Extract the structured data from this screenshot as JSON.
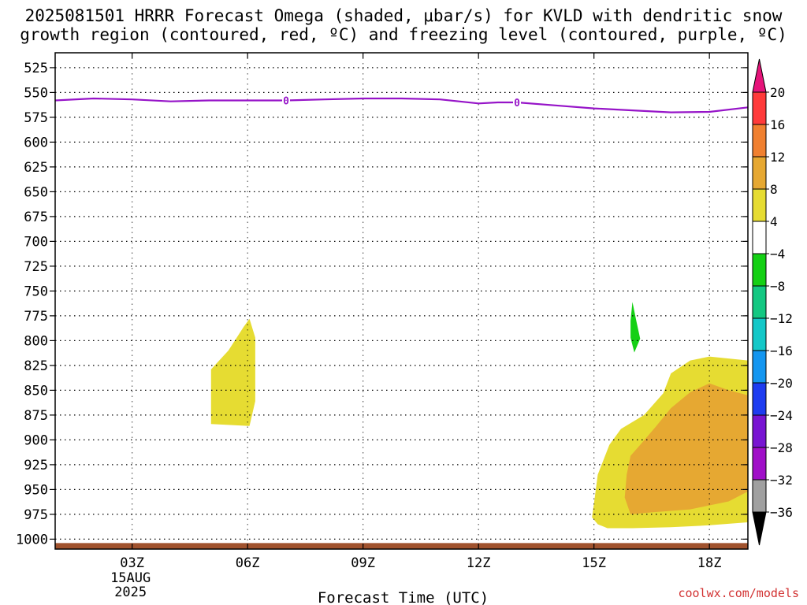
{
  "chart_data": {
    "type": "heatmap",
    "title_line1": "2025081501 HRRR Forecast Omega (shaded, μbar/s) for KVLD with dendritic snow",
    "title_line2": "growth region (contoured, red, ºC) and freezing level (contoured, purple, ºC)",
    "xlabel": "Forecast Time (UTC)",
    "ylabel": "",
    "x_range_hours": [
      1,
      19
    ],
    "y_range_hPa": [
      510,
      1010
    ],
    "y_ticks": [
      "525",
      "550",
      "575",
      "600",
      "625",
      "650",
      "675",
      "700",
      "725",
      "750",
      "775",
      "800",
      "825",
      "850",
      "875",
      "900",
      "925",
      "950",
      "975",
      "1000"
    ],
    "x_ticks": [
      {
        "hour": 3,
        "label": "03Z"
      },
      {
        "hour": 6,
        "label": "06Z"
      },
      {
        "hour": 9,
        "label": "09Z"
      },
      {
        "hour": 12,
        "label": "12Z"
      },
      {
        "hour": 15,
        "label": "15Z"
      },
      {
        "hour": 18,
        "label": "18Z"
      }
    ],
    "date_label_line1": "15AUG",
    "date_label_line2": "2025",
    "grid": true,
    "colorbar": {
      "labels": [
        "20",
        "16",
        "12",
        "8",
        "4",
        "-4",
        "-8",
        "-12",
        "-16",
        "-20",
        "-24",
        "-28",
        "-32",
        "-36"
      ],
      "colors": [
        "#ff3a3a",
        "#f08030",
        "#e6a832",
        "#e6dc32",
        "#ffffff",
        "#14d014",
        "#14c882",
        "#14c8c8",
        "#1496f0",
        "#1e3cf0",
        "#7814d2",
        "#a00fc8",
        "#a0a0a0"
      ],
      "top_arrow_color": "#e6147a",
      "bottom_arrow_color": "#000000"
    },
    "freezing_level": {
      "color": "#9614c8",
      "points": [
        [
          1,
          558
        ],
        [
          2,
          556
        ],
        [
          3,
          557
        ],
        [
          4,
          559
        ],
        [
          5,
          558
        ],
        [
          6,
          558
        ],
        [
          7,
          558
        ],
        [
          8,
          557
        ],
        [
          9,
          556
        ],
        [
          10,
          556
        ],
        [
          11,
          557
        ],
        [
          12,
          561
        ],
        [
          12.5,
          560
        ],
        [
          13,
          560
        ],
        [
          14,
          563
        ],
        [
          15,
          566
        ],
        [
          16,
          568
        ],
        [
          17,
          570
        ],
        [
          18,
          569.5
        ],
        [
          19,
          565
        ]
      ],
      "labels": [
        {
          "hour": 7,
          "hPa": 558,
          "text": "0"
        },
        {
          "hour": 13,
          "hPa": 560,
          "text": "0"
        }
      ]
    },
    "omega_regions": [
      {
        "value_range": "4 to 8",
        "color": "#e6dc32",
        "points": [
          [
            5.05,
            829
          ],
          [
            5.5,
            810
          ],
          [
            5.9,
            786
          ],
          [
            6.05,
            778
          ],
          [
            6.2,
            797
          ],
          [
            6.2,
            848
          ],
          [
            6.2,
            861
          ],
          [
            6.05,
            886
          ],
          [
            5.05,
            884
          ]
        ]
      },
      {
        "value_range": "-8 to -4",
        "color": "#14d014",
        "points": [
          [
            16.0,
            761
          ],
          [
            16.1,
            780
          ],
          [
            16.2,
            798
          ],
          [
            16.05,
            812
          ],
          [
            15.95,
            797
          ],
          [
            15.95,
            780
          ]
        ]
      },
      {
        "value_range": "4 to 8",
        "color": "#e6dc32",
        "points": [
          [
            19,
            820
          ],
          [
            18,
            816
          ],
          [
            17.5,
            820
          ],
          [
            17.0,
            833
          ],
          [
            16.8,
            853
          ],
          [
            16.3,
            875
          ],
          [
            15.7,
            889
          ],
          [
            15.4,
            905
          ],
          [
            15.1,
            935
          ],
          [
            15.0,
            964
          ],
          [
            14.95,
            978
          ],
          [
            15.1,
            985
          ],
          [
            15.35,
            989
          ],
          [
            16.0,
            989
          ],
          [
            17.0,
            988
          ],
          [
            18.0,
            986
          ],
          [
            19,
            983
          ]
        ]
      },
      {
        "value_range": "8 to 12",
        "color": "#e6a832",
        "points": [
          [
            19,
            855
          ],
          [
            18.5,
            850
          ],
          [
            18.0,
            843
          ],
          [
            17.5,
            852
          ],
          [
            17.0,
            868
          ],
          [
            16.6,
            887
          ],
          [
            16.2,
            905
          ],
          [
            15.95,
            916
          ],
          [
            15.85,
            935
          ],
          [
            15.8,
            958
          ],
          [
            15.95,
            975
          ],
          [
            16.5,
            973
          ],
          [
            17.5,
            970
          ],
          [
            18.5,
            962
          ],
          [
            19,
            952
          ]
        ]
      },
      {
        "value_range": "below ground",
        "color": "#a0522d",
        "points": [
          [
            1,
            1004
          ],
          [
            19,
            1004
          ],
          [
            19,
            1010
          ],
          [
            1,
            1010
          ]
        ]
      }
    ]
  },
  "watermark": "coolwx.com/models"
}
